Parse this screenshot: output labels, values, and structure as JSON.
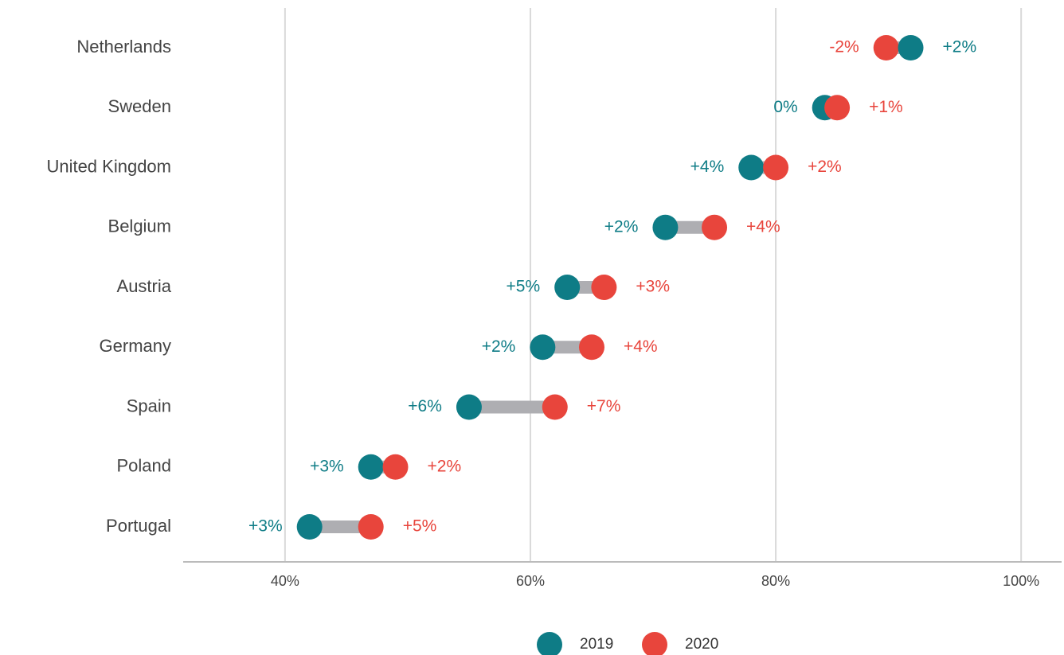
{
  "chart_data": {
    "type": "dumbbell",
    "categories": [
      "Netherlands",
      "Sweden",
      "United Kingdom",
      "Belgium",
      "Austria",
      "Germany",
      "Spain",
      "Poland",
      "Portugal"
    ],
    "series": [
      {
        "name": "2019",
        "color": "#0e7c86",
        "values": [
          91,
          84,
          78,
          71,
          63,
          61,
          55,
          47,
          42
        ],
        "labels": [
          "+2%",
          "0%",
          "+4%",
          "+2%",
          "+5%",
          "+2%",
          "+6%",
          "+3%",
          "+3%"
        ]
      },
      {
        "name": "2020",
        "color": "#e8453c",
        "values": [
          89,
          85,
          80,
          75,
          66,
          65,
          62,
          49,
          47
        ],
        "labels": [
          "-2%",
          "+1%",
          "+2%",
          "+4%",
          "+3%",
          "+4%",
          "+7%",
          "+2%",
          "+5%"
        ]
      }
    ],
    "xlim": [
      31.7,
      103.3
    ],
    "xticks": [
      {
        "value": 40,
        "label": "40%"
      },
      {
        "value": 60,
        "label": "60%"
      },
      {
        "value": 80,
        "label": "80%"
      },
      {
        "value": 100,
        "label": "100%"
      }
    ],
    "grid": true,
    "legend": "bottom"
  }
}
